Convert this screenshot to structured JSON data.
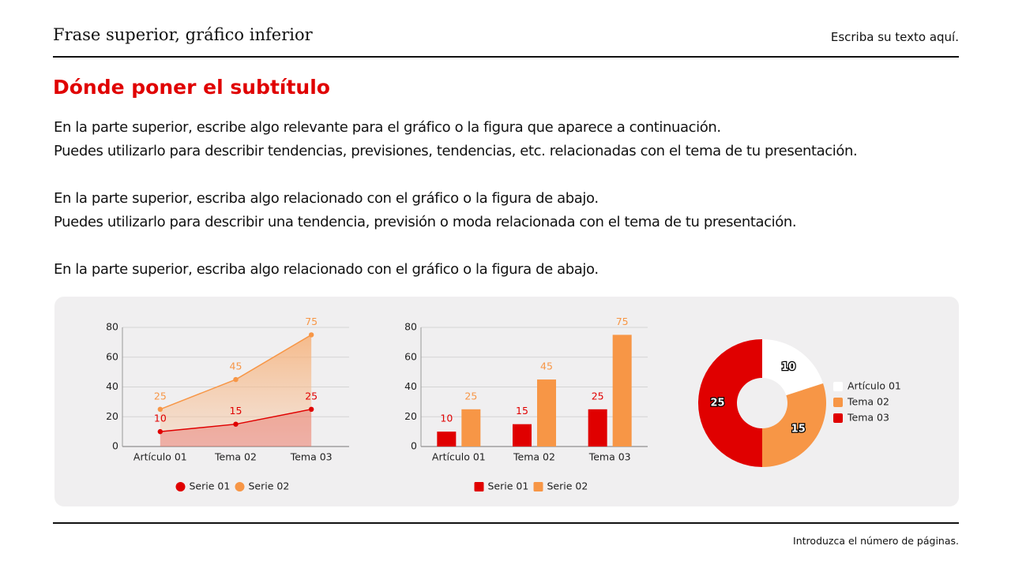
{
  "header": {
    "title": "Frase superior, gráfico inferior",
    "note": "Escriba su texto aquí."
  },
  "subtitle": "Dónde poner el subtítulo",
  "paragraphs": [
    [
      "En la parte superior, escribe algo relevante para el gráfico o la figura que aparece a continuación.",
      "Puedes utilizarlo para describir tendencias, previsiones, tendencias, etc. relacionadas con el tema de tu presentación."
    ],
    [
      "En la parte superior, escriba algo relacionado con el gráfico o la figura de abajo.",
      "Puedes utilizarlo para describir una tendencia, previsión o moda relacionada con el tema de tu presentación."
    ],
    [
      "En la parte superior, escriba algo relacionado con el gráfico o la figura de abajo."
    ]
  ],
  "chart_data": [
    {
      "type": "area",
      "categories": [
        "Artículo 01",
        "Tema 02",
        "Tema 03"
      ],
      "series": [
        {
          "name": "Serie 01",
          "color": "#e00000",
          "values": [
            10,
            15,
            25
          ]
        },
        {
          "name": "Serie 02",
          "color": "#f79646",
          "values": [
            25,
            45,
            75
          ]
        }
      ],
      "ylim": [
        0,
        80
      ],
      "yticks": [
        0,
        20,
        40,
        60,
        80
      ],
      "grid": true,
      "legend": "bottom"
    },
    {
      "type": "bar",
      "categories": [
        "Artículo 01",
        "Tema 02",
        "Tema 03"
      ],
      "series": [
        {
          "name": "Serie 01",
          "color": "#e00000",
          "values": [
            10,
            15,
            25
          ]
        },
        {
          "name": "Serie 02",
          "color": "#f79646",
          "values": [
            25,
            45,
            75
          ]
        }
      ],
      "ylim": [
        0,
        80
      ],
      "yticks": [
        0,
        20,
        40,
        60,
        80
      ],
      "grid": true,
      "legend": "bottom"
    },
    {
      "type": "donut",
      "categories": [
        "Artículo 01",
        "Tema 02",
        "Tema 03"
      ],
      "values": [
        10,
        15,
        25
      ],
      "colors": [
        "#ffffff",
        "#f79646",
        "#e00000"
      ],
      "legend": "right"
    }
  ],
  "footer": "Introduzca el número de páginas."
}
